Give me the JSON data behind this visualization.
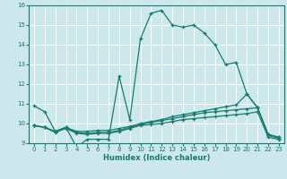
{
  "xlabel": "Humidex (Indice chaleur)",
  "background_color": "#cce8ec",
  "line_color": "#1a7a6e",
  "grid_color": "#b0d8dc",
  "xlim": [
    -0.5,
    23.5
  ],
  "ylim": [
    9,
    16
  ],
  "xticks": [
    0,
    1,
    2,
    3,
    4,
    5,
    6,
    7,
    8,
    9,
    10,
    11,
    12,
    13,
    14,
    15,
    16,
    17,
    18,
    19,
    20,
    21,
    22,
    23
  ],
  "yticks": [
    9,
    10,
    11,
    12,
    13,
    14,
    15,
    16
  ],
  "lines": [
    {
      "x": [
        0,
        1,
        2,
        3,
        4,
        5,
        6,
        7,
        8,
        9,
        10,
        11,
        12,
        13,
        14,
        15,
        16,
        17,
        18,
        19,
        20,
        21,
        22,
        23
      ],
      "y": [
        10.9,
        10.6,
        9.6,
        9.8,
        8.8,
        9.2,
        9.2,
        9.2,
        12.4,
        10.2,
        14.3,
        15.6,
        15.75,
        15.0,
        14.9,
        15.0,
        14.6,
        14.0,
        13.0,
        13.1,
        11.5,
        10.8,
        9.45,
        9.3
      ]
    },
    {
      "x": [
        0,
        1,
        2,
        3,
        4,
        5,
        6,
        7,
        8,
        9,
        10,
        11,
        12,
        13,
        14,
        15,
        16,
        17,
        18,
        19,
        20,
        21,
        22,
        23
      ],
      "y": [
        9.9,
        9.8,
        9.6,
        9.8,
        9.6,
        9.6,
        9.65,
        9.65,
        9.75,
        9.85,
        10.0,
        10.1,
        10.2,
        10.35,
        10.45,
        10.55,
        10.65,
        10.75,
        10.85,
        10.95,
        11.5,
        10.8,
        9.45,
        9.3
      ]
    },
    {
      "x": [
        0,
        1,
        2,
        3,
        4,
        5,
        6,
        7,
        8,
        9,
        10,
        11,
        12,
        13,
        14,
        15,
        16,
        17,
        18,
        19,
        20,
        21,
        22,
        23
      ],
      "y": [
        9.9,
        9.8,
        9.6,
        9.8,
        9.55,
        9.5,
        9.55,
        9.55,
        9.65,
        9.8,
        9.95,
        10.05,
        10.15,
        10.25,
        10.35,
        10.45,
        10.55,
        10.6,
        10.65,
        10.7,
        10.75,
        10.8,
        9.4,
        9.25
      ]
    },
    {
      "x": [
        0,
        1,
        2,
        3,
        4,
        5,
        6,
        7,
        8,
        9,
        10,
        11,
        12,
        13,
        14,
        15,
        16,
        17,
        18,
        19,
        20,
        21,
        22,
        23
      ],
      "y": [
        9.9,
        9.8,
        9.55,
        9.75,
        9.5,
        9.45,
        9.5,
        9.5,
        9.6,
        9.75,
        9.9,
        9.95,
        10.0,
        10.1,
        10.2,
        10.25,
        10.3,
        10.35,
        10.4,
        10.45,
        10.5,
        10.6,
        9.3,
        9.2
      ]
    }
  ]
}
